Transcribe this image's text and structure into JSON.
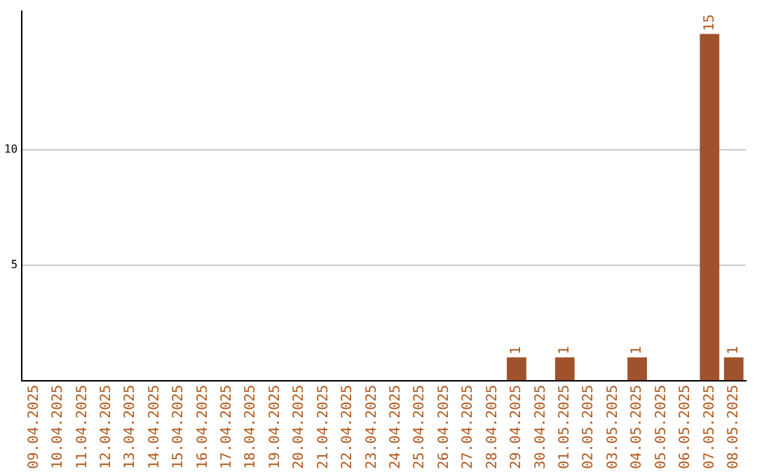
{
  "chart_data": {
    "type": "bar",
    "categories": [
      "09.04.2025",
      "10.04.2025",
      "11.04.2025",
      "12.04.2025",
      "13.04.2025",
      "14.04.2025",
      "15.04.2025",
      "16.04.2025",
      "17.04.2025",
      "18.04.2025",
      "19.04.2025",
      "20.04.2025",
      "21.04.2025",
      "22.04.2025",
      "23.04.2025",
      "24.04.2025",
      "25.04.2025",
      "26.04.2025",
      "27.04.2025",
      "28.04.2025",
      "29.04.2025",
      "30.04.2025",
      "01.05.2025",
      "02.05.2025",
      "03.05.2025",
      "04.05.2025",
      "05.05.2025",
      "06.05.2025",
      "07.05.2025",
      "08.05.2025"
    ],
    "values": [
      0,
      0,
      0,
      0,
      0,
      0,
      0,
      0,
      0,
      0,
      0,
      0,
      0,
      0,
      0,
      0,
      0,
      0,
      0,
      0,
      1,
      0,
      1,
      0,
      0,
      1,
      0,
      0,
      15,
      1
    ],
    "value_labels": [
      null,
      null,
      null,
      null,
      null,
      null,
      null,
      null,
      null,
      null,
      null,
      null,
      null,
      null,
      null,
      null,
      null,
      null,
      null,
      null,
      "1",
      null,
      "1",
      null,
      null,
      "1",
      null,
      null,
      "15",
      "1"
    ],
    "color": "#a0522d",
    "ylim": [
      0,
      16
    ],
    "yticks": [
      5,
      10
    ],
    "grid": "y",
    "legend": false
  }
}
